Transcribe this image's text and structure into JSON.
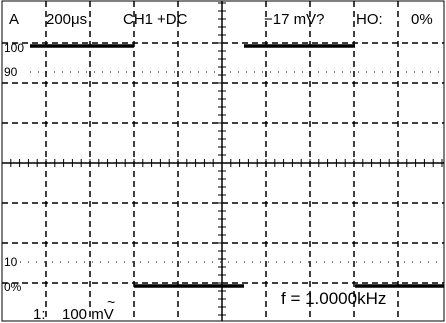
{
  "header": {
    "trigger_source": "A",
    "timebase": "200μs",
    "channel": "CH1",
    "coupling": "+DC",
    "trigger_level": "−17 mV?",
    "holdoff_label": "HO:",
    "holdoff_value": "0%"
  },
  "graticule": {
    "percent_100": "100",
    "percent_90": "90",
    "percent_10": "10",
    "percent_0": "0%"
  },
  "readout": {
    "frequency": "f = 1.0000kHz",
    "channel_number": "1:",
    "volts_per_div": "100 mV",
    "ac_coupling_symbol": "~"
  },
  "colors": {
    "background": "#ffffff",
    "trace": "#000000",
    "grid": "#000000"
  }
}
